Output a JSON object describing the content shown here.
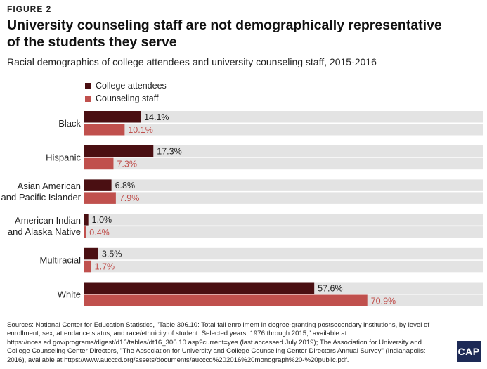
{
  "figure_label": "FIGURE 2",
  "title": "University counseling staff are not demographically representative of the students they serve",
  "subtitle": "Racial demographics of college attendees and university counseling staff, 2015-2016",
  "colors": {
    "college_attendees": "#4a0f12",
    "counseling_staff": "#c0504d",
    "track": "#e3e3e3"
  },
  "chart_data": {
    "type": "bar",
    "orientation": "horizontal",
    "categories": [
      "Black",
      "Hispanic",
      "Asian American and Pacific Islander",
      "American Indian and Alaska Native",
      "Multiracial",
      "White"
    ],
    "category_lines": [
      [
        "Black"
      ],
      [
        "Hispanic"
      ],
      [
        "Asian American",
        "and Pacific Islander"
      ],
      [
        "American Indian",
        "and Alaska Native"
      ],
      [
        "Multiracial"
      ],
      [
        "White"
      ]
    ],
    "series": [
      {
        "name": "College attendees",
        "values": [
          14.1,
          17.3,
          6.8,
          1.0,
          3.5,
          57.6
        ],
        "labels": [
          "14.1%",
          "17.3%",
          "6.8%",
          "1.0%",
          "3.5%",
          "57.6%"
        ]
      },
      {
        "name": "Counseling staff",
        "values": [
          10.1,
          7.3,
          7.9,
          0.4,
          1.7,
          70.9
        ],
        "labels": [
          "10.1%",
          "7.3%",
          "7.9%",
          "0.4%",
          "1.7%",
          "70.9%"
        ]
      }
    ],
    "xlim": [
      0,
      100
    ],
    "legend": "top-left",
    "grid": false
  },
  "source_text": "Sources: National Center for Education Statistics, \"Table 306.10: Total fall enrollment in degree-granting postsecondary institutions, by level of enrollment, sex, attendance status, and race/ethnicity of student: Selected years, 1976 through 2015,\" available at https://nces.ed.gov/programs/digest/d16/tables/dt16_306.10.asp?current=yes (last accessed July 2019); The Association for University and College Counseling Center Directors, \"The Association for University and College Counseling Center Directors Annual Survey\" (Indianapolis: 2016), available at https://www.aucccd.org/assets/documents/aucccd%202016%20monograph%20-%20public.pdf.",
  "logo_text": "CAP"
}
